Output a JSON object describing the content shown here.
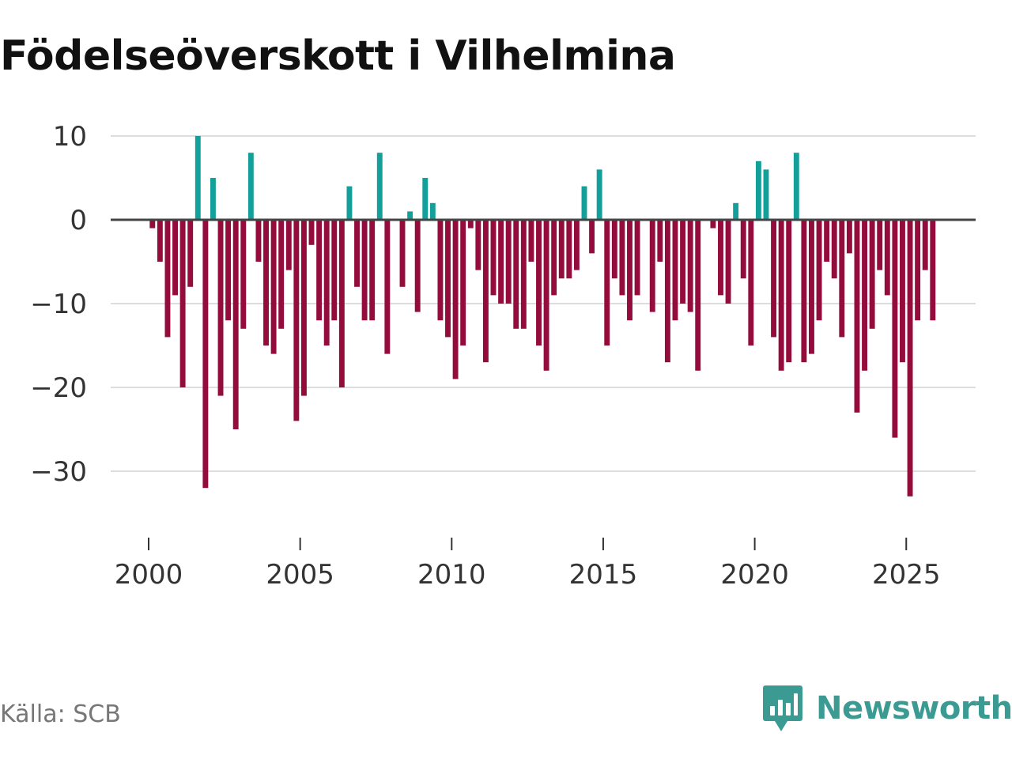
{
  "title": "Födelseöverskott i Vilhelmina",
  "source": "Källa: SCB",
  "brand": {
    "name": "Newsworthy",
    "logo_icon": "newsworthy-logo-icon"
  },
  "colors": {
    "positive": "#13a09a",
    "negative": "#930c3c",
    "zero_line": "#444444",
    "grid": "#dddddd",
    "brand": "#3b9a92"
  },
  "chart_data": {
    "type": "bar",
    "title": "Födelseöverskott i Vilhelmina",
    "xlabel": "",
    "ylabel": "",
    "x_start": 2000,
    "periods_per_year": 4,
    "xlim": [
      1999.2,
      2026.7
    ],
    "xticks": [
      2000,
      2005,
      2010,
      2015,
      2020,
      2025
    ],
    "ylim": [
      -38,
      10
    ],
    "yticks": [
      10,
      0,
      -10,
      -20,
      -30
    ],
    "ytick_labels": [
      "10",
      "0",
      "−10",
      "−20",
      "−30"
    ],
    "grid": true,
    "legend": "none",
    "series": [
      {
        "name": "Födelseöverskott",
        "values": [
          -1,
          -5,
          -14,
          -9,
          -20,
          -8,
          10,
          -32,
          5,
          -21,
          -12,
          -25,
          -13,
          8,
          -5,
          -15,
          -16,
          -13,
          -6,
          -24,
          -21,
          -3,
          -12,
          -15,
          -12,
          -20,
          4,
          -8,
          -12,
          -12,
          8,
          -16,
          0,
          -8,
          1,
          -11,
          5,
          2,
          -12,
          -14,
          -19,
          -15,
          -1,
          -6,
          -17,
          -9,
          -10,
          -10,
          -13,
          -13,
          -5,
          -15,
          -18,
          -9,
          -7,
          -7,
          -6,
          4,
          -4,
          6,
          -15,
          -7,
          -9,
          -12,
          -9,
          0,
          -11,
          -5,
          -17,
          -12,
          -10,
          -11,
          -18,
          0,
          -1,
          -9,
          -10,
          2,
          -7,
          -15,
          7,
          6,
          -14,
          -18,
          -17,
          8,
          -17,
          -16,
          -12,
          -5,
          -7,
          -14,
          -4,
          -23,
          -18,
          -13,
          -6,
          -9,
          -26,
          -17,
          -33,
          -12,
          -6,
          -12
        ]
      }
    ]
  }
}
